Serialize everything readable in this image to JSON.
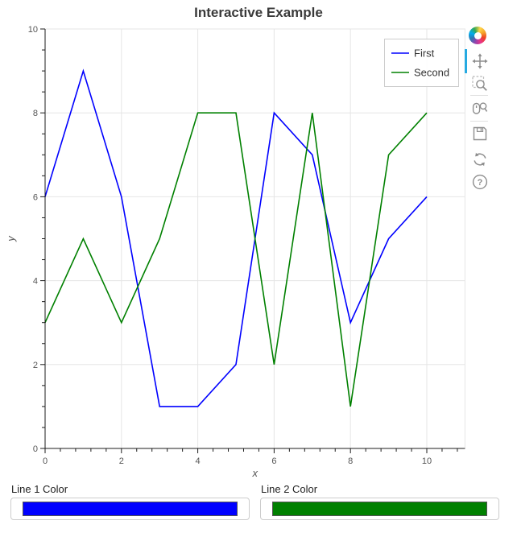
{
  "title": "Interactive Example",
  "chart_data": {
    "type": "line",
    "title": "Interactive Example",
    "x": [
      0,
      1,
      2,
      3,
      4,
      5,
      6,
      7,
      8,
      9,
      10
    ],
    "series": [
      {
        "name": "First",
        "color": "#0000ff",
        "values": [
          6,
          9,
          6,
          1,
          1,
          2,
          8,
          7,
          3,
          5,
          6
        ]
      },
      {
        "name": "Second",
        "color": "#008000",
        "values": [
          3,
          5,
          3,
          5,
          8,
          8,
          2,
          8,
          1,
          7,
          8
        ]
      }
    ],
    "xlabel": "x",
    "ylabel": "y",
    "xlim": [
      0,
      11
    ],
    "ylim": [
      0,
      10
    ],
    "x_ticks": [
      0,
      2,
      4,
      6,
      8,
      10
    ],
    "y_ticks": [
      0,
      2,
      4,
      6,
      8,
      10
    ],
    "x_minor_step": 0.4,
    "y_minor_step": 0.5,
    "grid": true,
    "grid_color": "#e5e5e5",
    "legend_position": "top_right"
  },
  "toolbar": {
    "logo": "bokeh-logo",
    "active_color": "#26aae1",
    "icon_color": "#8d8d8d",
    "tools": [
      {
        "name": "pan-icon",
        "active": true
      },
      {
        "name": "box-zoom-icon",
        "active": false
      },
      {
        "name": "wheel-zoom-icon",
        "active": false
      },
      {
        "name": "save-icon",
        "active": false
      },
      {
        "name": "reset-icon",
        "active": false
      },
      {
        "name": "help-icon",
        "active": false
      }
    ]
  },
  "widgets": [
    {
      "label": "Line 1 Color",
      "value": "#0000ff"
    },
    {
      "label": "Line 2 Color",
      "value": "#008000"
    }
  ]
}
